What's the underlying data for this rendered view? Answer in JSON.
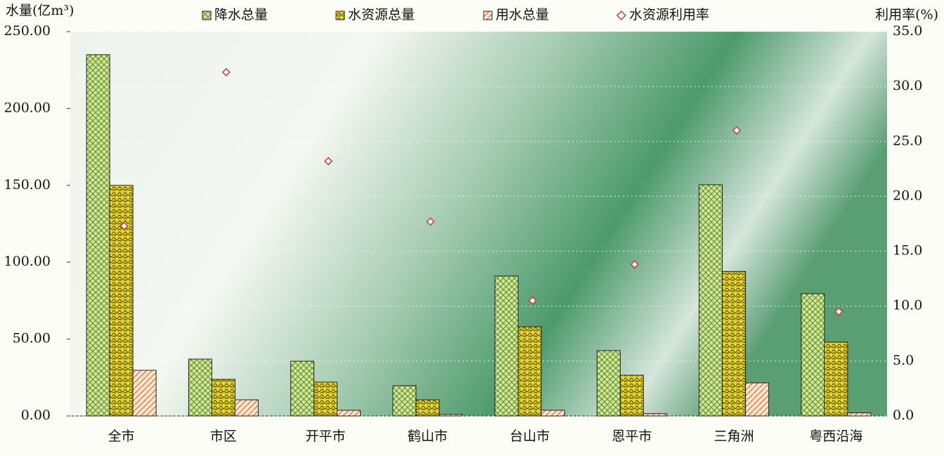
{
  "chart_data": {
    "type": "bar",
    "y_label": "水量(亿m³)",
    "y2_label": "利用率(%)",
    "categories": [
      "全市",
      "市区",
      "开平市",
      "鹤山市",
      "台山市",
      "恩平市",
      "三角洲",
      "粤西沿海"
    ],
    "series": [
      {
        "name": "降水总量",
        "color": "#d2e696",
        "values": [
          235,
          37,
          35.6,
          19.7,
          91,
          42.5,
          150.4,
          79.5
        ]
      },
      {
        "name": "水资源总量",
        "color": "#e8d424",
        "values": [
          150,
          23.8,
          22,
          10.5,
          58,
          26.5,
          94,
          48
        ]
      },
      {
        "name": "用水总量",
        "color": "#fbe6c6",
        "values": [
          29.7,
          10.5,
          3.7,
          1,
          3.7,
          1.5,
          21.5,
          2
        ]
      },
      {
        "name": "水资源利用率",
        "type": "scatter",
        "axis": "y2",
        "marker": "diamond",
        "color": "#d03a30",
        "values": [
          17.3,
          31.3,
          23.2,
          17.7,
          10.5,
          13.8,
          26.0,
          9.5
        ]
      }
    ],
    "ylim": [
      0,
      250
    ],
    "yticks": [
      {
        "value": 0,
        "label": "0.00"
      },
      {
        "value": 50,
        "label": "50.00"
      },
      {
        "value": 100,
        "label": "100.00"
      },
      {
        "value": 150,
        "label": "150.00"
      },
      {
        "value": 200,
        "label": "200.00"
      },
      {
        "value": 250,
        "label": "250.00"
      }
    ],
    "y2lim": [
      0,
      35
    ],
    "y2ticks": [
      {
        "value": 0,
        "label": "0.0"
      },
      {
        "value": 5,
        "label": "5.0"
      },
      {
        "value": 10,
        "label": "10.0"
      },
      {
        "value": 15,
        "label": "15.0"
      },
      {
        "value": 20,
        "label": "20.0"
      },
      {
        "value": 25,
        "label": "25.0"
      },
      {
        "value": 30,
        "label": "30.0"
      },
      {
        "value": 35,
        "label": "35.0"
      }
    ],
    "grid": true,
    "legend": "top"
  }
}
